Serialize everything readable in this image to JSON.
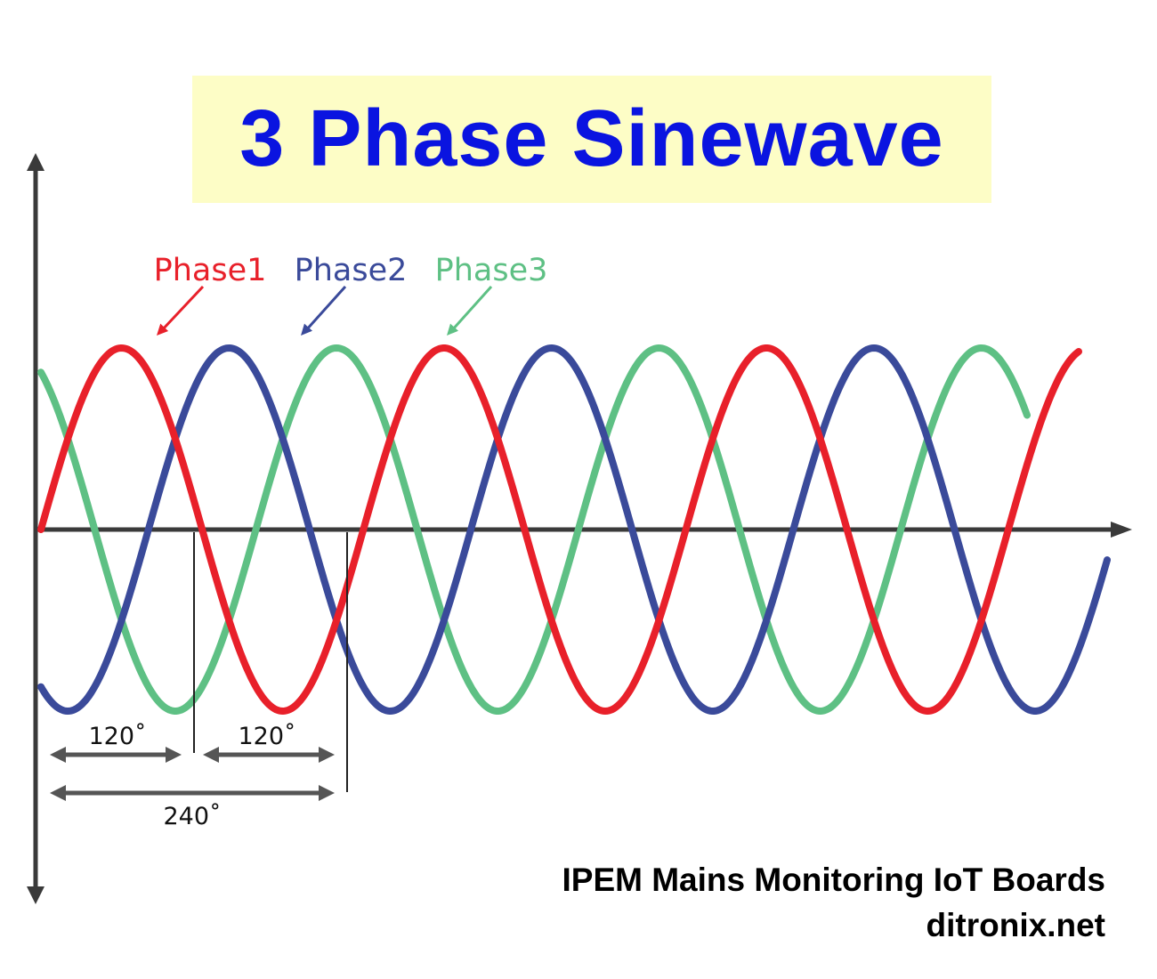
{
  "title": "3 Phase Sinewave",
  "footer": {
    "line1": "IPEM Mains Monitoring IoT Boards",
    "line2": "ditronix.net"
  },
  "colors": {
    "title_bg": "#fdfdc6",
    "title_text": "#0a14e0",
    "axis": "#3a3a3a"
  },
  "chart_data": {
    "type": "line",
    "title": "3 Phase Sinewave",
    "x_unit": "degrees",
    "xlim": [
      0,
      1260
    ],
    "ylim": [
      -1,
      1
    ],
    "grid": false,
    "series": [
      {
        "name": "Phase1",
        "color": "#e8202a",
        "phase_deg": 0,
        "x_range": [
          0,
          1260
        ],
        "function": "sin(x)"
      },
      {
        "name": "Phase2",
        "color": "#3a4a9a",
        "phase_deg": 120,
        "x_range": [
          0,
          1260
        ],
        "function": "sin(x - 120)"
      },
      {
        "name": "Phase3",
        "color": "#5ec084",
        "phase_deg": 240,
        "x_range": [
          0,
          1260
        ],
        "function": "sin(x - 240)"
      }
    ],
    "annotations": {
      "shift_120_first": "120˚",
      "shift_120_second": "120˚",
      "shift_240": "240˚"
    }
  }
}
